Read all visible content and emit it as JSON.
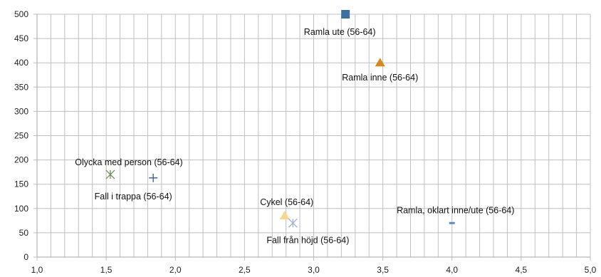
{
  "chart_data": {
    "type": "scatter",
    "title": "",
    "xlabel": "",
    "ylabel": "",
    "xlim": [
      1.0,
      5.0
    ],
    "ylim": [
      0,
      500
    ],
    "x_ticks": [
      "1,0",
      "1,5",
      "2,0",
      "2,5",
      "3,0",
      "3,5",
      "4,0",
      "4,5",
      "5,0"
    ],
    "y_ticks": [
      "0",
      "50",
      "100",
      "150",
      "200",
      "250",
      "300",
      "350",
      "400",
      "450",
      "500"
    ],
    "grid": true,
    "gridline_color": "#bfbfbf",
    "points": [
      {
        "label": "Ramla ute (56-64)",
        "x": 3.23,
        "y": 500,
        "marker": "square",
        "color": "#3f6f9f",
        "label_pos": "below"
      },
      {
        "label": "Ramla inne (56-64)",
        "x": 3.48,
        "y": 400,
        "marker": "triangle",
        "color": "#d48a22",
        "label_pos": "below"
      },
      {
        "label": "Olycka med person (56-64)",
        "x": 1.53,
        "y": 170,
        "marker": "asterisk",
        "color": "#6e8f5e",
        "label_pos": "above"
      },
      {
        "label": "Fall i trappa (56-64)",
        "x": 1.84,
        "y": 163,
        "marker": "plus",
        "color": "#3a5a82",
        "label_pos": "below"
      },
      {
        "label": "Cykel (56-64)",
        "x": 2.79,
        "y": 85,
        "marker": "triangle",
        "color": "#f6d98a",
        "label_pos": "above"
      },
      {
        "label": "Fall från höjd (56-64)",
        "x": 2.85,
        "y": 70,
        "marker": "asterisk",
        "color": "#9fb3d6",
        "label_pos": "below"
      },
      {
        "label": "Ramla, oklart inne/ute (56-64)",
        "x": 4.0,
        "y": 70,
        "marker": "dash",
        "color": "#5b8cc6",
        "label_pos": "above"
      }
    ]
  }
}
